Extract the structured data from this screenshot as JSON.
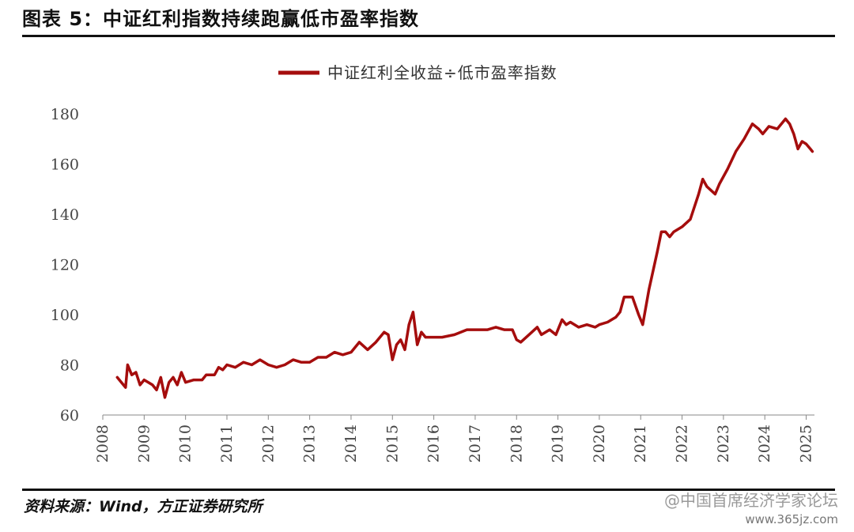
{
  "figure": {
    "title": "图表 5：中证红利指数持续跑赢低市盈率指数",
    "source": "资料来源：Wind，方正证券研究所",
    "watermark": "@中国首席经济学家论坛",
    "watermark_url": "www.365jz.com"
  },
  "chart_data": {
    "type": "line",
    "legend_placement": "top-center",
    "grid": false,
    "ylim": [
      60,
      180
    ],
    "yticks": [
      60,
      80,
      100,
      120,
      140,
      160,
      180
    ],
    "xlim": [
      2008,
      2025.2
    ],
    "xticks": [
      "2008",
      "2009",
      "2010",
      "2011",
      "2012",
      "2013",
      "2014",
      "2015",
      "2016",
      "2017",
      "2018",
      "2019",
      "2020",
      "2021",
      "2022",
      "2023",
      "2024",
      "2025"
    ],
    "series": [
      {
        "name": "中证红利全收益÷低市盈率指数",
        "color": "#a50d0d",
        "x": [
          2008.35,
          2008.45,
          2008.55,
          2008.6,
          2008.7,
          2008.8,
          2008.9,
          2009.0,
          2009.1,
          2009.2,
          2009.3,
          2009.4,
          2009.45,
          2009.5,
          2009.6,
          2009.7,
          2009.8,
          2009.9,
          2010.0,
          2010.2,
          2010.4,
          2010.5,
          2010.7,
          2010.8,
          2010.9,
          2011.0,
          2011.2,
          2011.4,
          2011.6,
          2011.8,
          2012.0,
          2012.2,
          2012.4,
          2012.6,
          2012.8,
          2013.0,
          2013.2,
          2013.4,
          2013.6,
          2013.8,
          2014.0,
          2014.2,
          2014.4,
          2014.6,
          2014.8,
          2014.9,
          2015.0,
          2015.1,
          2015.2,
          2015.3,
          2015.4,
          2015.5,
          2015.6,
          2015.7,
          2015.8,
          2016.0,
          2016.2,
          2016.5,
          2016.8,
          2017.0,
          2017.3,
          2017.5,
          2017.7,
          2017.9,
          2018.0,
          2018.1,
          2018.3,
          2018.5,
          2018.6,
          2018.8,
          2018.95,
          2019.1,
          2019.2,
          2019.3,
          2019.5,
          2019.7,
          2019.9,
          2020.0,
          2020.2,
          2020.4,
          2020.5,
          2020.6,
          2020.8,
          2020.95,
          2021.05,
          2021.2,
          2021.4,
          2021.5,
          2021.6,
          2021.7,
          2021.8,
          2022.0,
          2022.2,
          2022.4,
          2022.5,
          2022.6,
          2022.8,
          2022.9,
          2023.0,
          2023.1,
          2023.3,
          2023.5,
          2023.7,
          2023.85,
          2023.95,
          2024.1,
          2024.3,
          2024.5,
          2024.6,
          2024.7,
          2024.8,
          2024.9,
          2025.0,
          2025.1,
          2025.15
        ],
        "y": [
          75,
          73,
          71,
          80,
          76,
          77,
          72,
          74,
          73,
          72,
          70,
          75,
          71,
          67,
          73,
          75,
          72,
          77,
          73,
          74,
          74,
          76,
          76,
          79,
          78,
          80,
          79,
          81,
          80,
          82,
          80,
          79,
          80,
          82,
          81,
          81,
          83,
          83,
          85,
          84,
          85,
          89,
          86,
          89,
          93,
          92,
          82,
          88,
          90,
          86,
          96,
          101,
          88,
          93,
          91,
          91,
          91,
          92,
          94,
          94,
          94,
          95,
          94,
          94,
          90,
          89,
          92,
          95,
          92,
          94,
          92,
          98,
          96,
          97,
          95,
          96,
          95,
          96,
          97,
          99,
          101,
          107,
          107,
          100,
          96,
          110,
          125,
          133,
          133,
          131,
          133,
          135,
          138,
          148,
          154,
          151,
          148,
          152,
          155,
          158,
          165,
          170,
          176,
          174,
          172,
          175,
          174,
          178,
          176,
          172,
          166,
          169,
          168,
          166,
          165
        ]
      }
    ]
  }
}
